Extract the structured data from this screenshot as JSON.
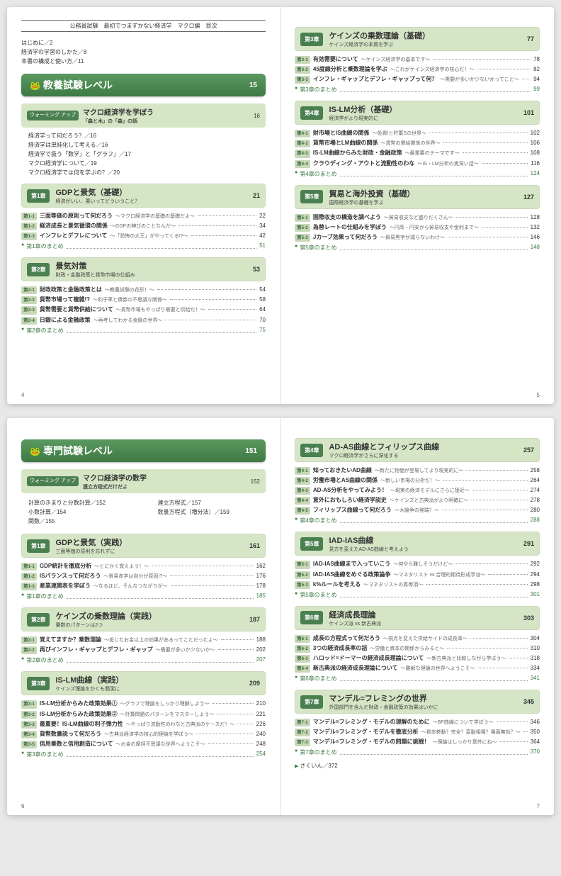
{
  "header": "公務員試験　最初でつまずかない経済学　マクロ編　目次",
  "intro": [
    "はじめに／2",
    "経済学の学習のしかた／8",
    "本書の構成と使い方／11"
  ],
  "level1": {
    "title": "教養試験レベル",
    "page": "15"
  },
  "warmup1": {
    "tag": "ウォーミング\nアップ",
    "title": "マクロ経済学を学ぼう",
    "sub": "「森と木」の「森」の話",
    "page": "16"
  },
  "warmup1_items": [
    "経済学って何だろう？／16",
    "経済学は単純化して考える／16",
    "経済学で扱う「数学」と「グラフ」／17",
    "マクロ経済学について／19",
    "マクロ経済学では何を学ぶの？／20"
  ],
  "ch1": {
    "tag": "第1章",
    "title": "GDPと景気（基礎）",
    "sub": "経済がいい、悪いってどういうこと？",
    "page": "21"
  },
  "ch1_items": [
    {
      "tag": "第1-1",
      "title": "三面等価の原則って何だろう",
      "sub": "～マクロ経済学の基礎の基礎だよ～",
      "page": "22"
    },
    {
      "tag": "第1-2",
      "title": "経済成長と景気循環の関係",
      "sub": "～GDPの伸びのことなんだ～",
      "page": "34"
    },
    {
      "tag": "第1-3",
      "title": "インフレとデフレについて",
      "sub": "～「恐怖の大王」がやってくる!?～",
      "page": "42"
    }
  ],
  "ch1_summary": {
    "text": "第1章のまとめ",
    "page": "51"
  },
  "ch2": {
    "tag": "第2章",
    "title": "景気対策",
    "sub": "財政・金融政策と貨幣市場の仕組み",
    "page": "53"
  },
  "ch2_items": [
    {
      "tag": "第2-1",
      "title": "財政政策と金融政策とは",
      "sub": "～教養試験の花形！～",
      "page": "54"
    },
    {
      "tag": "第2-2",
      "title": "貨幣市場って複雑!?",
      "sub": "～利子率と債券の不思議な関係～",
      "page": "58"
    },
    {
      "tag": "第2-3",
      "title": "貨幣需要と貨幣供給について",
      "sub": "～貨幣市場もやっぱり需要と供給だ！～",
      "page": "64"
    },
    {
      "tag": "第2-4",
      "title": "日銀による金融政策",
      "sub": "～再考してわかる金融の世界～",
      "page": "70"
    }
  ],
  "ch2_summary": {
    "text": "第2章のまとめ",
    "page": "75"
  },
  "ch3": {
    "tag": "第3章",
    "title": "ケインズの乗数理論（基礎）",
    "sub": "ケインズ経済学の本質を学ぶ",
    "page": "77"
  },
  "ch3_items": [
    {
      "tag": "第3-1",
      "title": "有効需要について",
      "sub": "～ケインズ経済学の基本です～",
      "page": "78"
    },
    {
      "tag": "第3-2",
      "title": "45度線分析と乗数理論を学ぶ",
      "sub": "～これがケインズ経済学の核心だ！～",
      "page": "82"
    },
    {
      "tag": "第3-3",
      "title": "インフレ・ギャップとデフレ・ギャップって何？",
      "sub": "～需要が多いか少ないかってこと～",
      "page": "94"
    }
  ],
  "ch3_summary": {
    "text": "第3章のまとめ",
    "page": "99"
  },
  "ch4": {
    "tag": "第4章",
    "title": "IS-LM分析（基礎）",
    "sub": "経済学がより現実的に",
    "page": "101"
  },
  "ch4_items": [
    {
      "tag": "第4-1",
      "title": "財市場とIS曲線の関係",
      "sub": "～投資Iと貯蓄Sの世界～",
      "page": "102"
    },
    {
      "tag": "第4-2",
      "title": "貨幣市場とLM曲線の関係",
      "sub": "～貨幣の需給関係の世界～",
      "page": "106"
    },
    {
      "tag": "第4-3",
      "title": "IS-LM曲線からみた財政・金融政策",
      "sub": "～最重要のテーマです～",
      "page": "108"
    },
    {
      "tag": "第4-4",
      "title": "クラウディング・アウトと流動性のわな",
      "sub": "～IS・LM分析の奥深い話～",
      "page": "116"
    }
  ],
  "ch4_summary": {
    "text": "第4章のまとめ",
    "page": "124"
  },
  "ch5": {
    "tag": "第5章",
    "title": "貿易と海外投資（基礎）",
    "sub": "国際経済学の基礎を学ぶ",
    "page": "127"
  },
  "ch5_items": [
    {
      "tag": "第5-1",
      "title": "国際収支の構造を調べよう",
      "sub": "～貿易収支など盛りだくさん～",
      "page": "128"
    },
    {
      "tag": "第5-2",
      "title": "為替レートの仕組みを学ぼう",
      "sub": "～円高・円安から貿易収支や金利まで～",
      "page": "132"
    },
    {
      "tag": "第5-3",
      "title": "Jカーブ効果って何だろう",
      "sub": "～貿易黒字が減らないわけ～",
      "page": "146"
    }
  ],
  "ch5_summary": {
    "text": "第5章のまとめ",
    "page": "148"
  },
  "level2": {
    "title": "専門試験レベル",
    "page": "151"
  },
  "warmup2": {
    "tag": "ウォーミング\nアップ",
    "title": "マクロ経済学の数学",
    "sub": "連立方程式だけだよ",
    "page": "152"
  },
  "warmup2_left": [
    "計算のきまりと分数計算／152",
    "小数計算／154",
    "関数／155"
  ],
  "warmup2_right": [
    "連立方程式／157",
    "数量方程式（増分法）／159"
  ],
  "p6ch1": {
    "tag": "第1章",
    "title": "GDPと景気（実践）",
    "sub": "三面等価の原則を忘れずに",
    "page": "161"
  },
  "p6ch1_items": [
    {
      "tag": "第1-1",
      "title": "GDP統計を徹底分析",
      "sub": "～とにかく覚えよう！～",
      "page": "162"
    },
    {
      "tag": "第1-2",
      "title": "ISバランスって何だろう",
      "sub": "～貿易赤字は自分が原因!?～",
      "page": "176"
    },
    {
      "tag": "第1-3",
      "title": "産業連関表を学ぼう",
      "sub": "～なるほど、そんなつながりが～",
      "page": "178"
    }
  ],
  "p6ch1_summary": {
    "text": "第1章のまとめ",
    "page": "185"
  },
  "p6ch2": {
    "tag": "第2章",
    "title": "ケインズの乗数理論（実践）",
    "sub": "乗数のパターンは2つ",
    "page": "187"
  },
  "p6ch2_items": [
    {
      "tag": "第2-1",
      "title": "覚えてますか？乗数理論",
      "sub": "～投じたお金以上の効果があるってことだったよ～",
      "page": "188"
    },
    {
      "tag": "第2-2",
      "title": "再びインフレ・ギャップとデフレ・ギャップ",
      "sub": "～需要が多いか少ないか～",
      "page": "202"
    }
  ],
  "p6ch2_summary": {
    "text": "第2章のまとめ",
    "page": "207"
  },
  "p6ch3": {
    "tag": "第3章",
    "title": "IS-LM曲線（実践）",
    "sub": "ケインズ理論をかくも簡潔に",
    "page": "209"
  },
  "p6ch3_items": [
    {
      "tag": "第3-1",
      "title": "IS-LM分析からみた政策効果①",
      "sub": "～グラフで理論をしっかり理解しよう～",
      "page": "210"
    },
    {
      "tag": "第3-2",
      "title": "IS-LM分析からみた政策効果②",
      "sub": "～計算問題のパターンをマスターしよう～",
      "page": "221"
    },
    {
      "tag": "第3-3",
      "title": "最重要！IS-LM曲線の利子弾力性",
      "sub": "～やっぱり流動性のわなと古典派のケースだ！～",
      "page": "226"
    },
    {
      "tag": "第3-4",
      "title": "貨幣数量説って何だろう",
      "sub": "～古典派経済学の核心的理論を学ぼう～",
      "page": "240"
    },
    {
      "tag": "第3-5",
      "title": "信用乗数と信用創造について",
      "sub": "～お金の摩訶不思議な世界へようこそ～",
      "page": "248"
    }
  ],
  "p6ch3_summary": {
    "text": "第3章のまとめ",
    "page": "254"
  },
  "p7ch4": {
    "tag": "第4章",
    "title": "AD-AS曲線とフィリップス曲線",
    "sub": "マクロ経済学がさらに深化する",
    "page": "257"
  },
  "p7ch4_items": [
    {
      "tag": "第4-1",
      "title": "知っておきたいAD曲線",
      "sub": "～新たに物価が登場してより現実的に～",
      "page": "258"
    },
    {
      "tag": "第4-2",
      "title": "労働市場とAS曲線の関係",
      "sub": "～新しい市場の分析だ！～",
      "page": "264"
    },
    {
      "tag": "第4-3",
      "title": "AD-AS分析をやってみよう！",
      "sub": "～現実の経済モデルにさらに接近～",
      "page": "274"
    },
    {
      "tag": "第4-4",
      "title": "意外におもしろい経済学説史",
      "sub": "～ケインズと古典派がより明確に～",
      "page": "278"
    },
    {
      "tag": "第4-5",
      "title": "フィリップス曲線って何だろう",
      "sub": "～大論争の発端？～",
      "page": "280"
    }
  ],
  "p7ch4_summary": {
    "text": "第4章のまとめ",
    "page": "288"
  },
  "p7ch5": {
    "tag": "第5章",
    "title": "IAD-IAS曲線",
    "sub": "見方を変えたAD-AS曲線と考えよう",
    "page": "291"
  },
  "p7ch5_items": [
    {
      "tag": "第5-1",
      "title": "IAD-IAS曲線まで入っていこう",
      "sub": "～何やら難しそうだけど～",
      "page": "292"
    },
    {
      "tag": "第5-2",
      "title": "IAD-IAS曲線をめぐる政策論争",
      "sub": "～マネタリスト vs 合理的期待形成学派～",
      "page": "294"
    },
    {
      "tag": "第5-3",
      "title": "k%ルールを考える",
      "sub": "～マネタリストの真骨頂～",
      "page": "298"
    }
  ],
  "p7ch5_summary": {
    "text": "第5章のまとめ",
    "page": "301"
  },
  "p7ch6": {
    "tag": "第6章",
    "title": "経済成長理論",
    "sub": "ケインズ派 vs 新古典派",
    "page": "303"
  },
  "p7ch6_items": [
    {
      "tag": "第6-1",
      "title": "成長の方程式って何だろう",
      "sub": "～視点を変えた供給サイドの成長率～",
      "page": "304"
    },
    {
      "tag": "第6-2",
      "title": "3つの経済成長率の話",
      "sub": "～労働と資本の関係からみると～",
      "page": "310"
    },
    {
      "tag": "第6-3",
      "title": "ハロッド=ドーマーの経済成長理論について",
      "sub": "～新古典派と比較しながら学ぼう～",
      "page": "318"
    },
    {
      "tag": "第6-4",
      "title": "新古典派の経済成長理論について",
      "sub": "～難解な理論の世界へようこそ～",
      "page": "334"
    }
  ],
  "p7ch6_summary": {
    "text": "第6章のまとめ",
    "page": "341"
  },
  "p7ch7": {
    "tag": "第7章",
    "title": "マンデル=フレミングの世界",
    "sub": "外国部門を含んだ財政・金融政策の効果はいかに",
    "page": "345"
  },
  "p7ch7_items": [
    {
      "tag": "第7-1",
      "title": "マンデル=フレミング・モデルの理解のために",
      "sub": "～BP曲線について学ぼう～",
      "page": "346"
    },
    {
      "tag": "第7-2",
      "title": "マンデル=フレミング・モデルを徹底分析",
      "sub": "～資本移動？完全？変動相場？場面無効？～",
      "page": "350"
    },
    {
      "tag": "第7-3",
      "title": "マンデル=フレミング・モデルの問題に挑戦！",
      "sub": "～理論はしっかり意外にね～",
      "page": "364"
    }
  ],
  "p7ch7_summary": {
    "text": "第7章のまとめ",
    "page": "370"
  },
  "index": "さくいん／372",
  "pagenums": {
    "p4": "4",
    "p5": "5",
    "p6": "6",
    "p7": "7"
  }
}
